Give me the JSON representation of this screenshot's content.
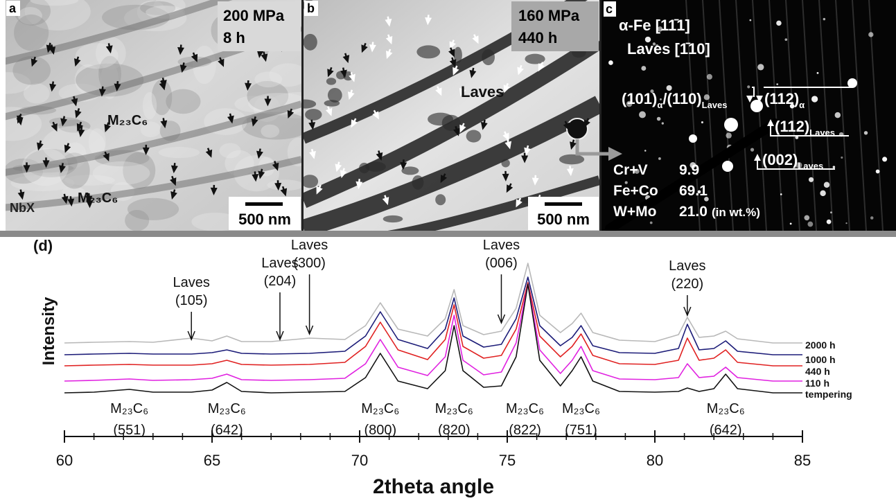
{
  "panels": [
    {
      "label": "a",
      "stress": "200 MPa",
      "time": "8 h",
      "annotations": [
        "M₂₃C₆",
        "M₂₃C₆",
        "NbX"
      ],
      "scale_bar": "500 nm"
    },
    {
      "label": "b",
      "stress": "160 MPa",
      "time": "440 h",
      "annotations": [
        "Laves"
      ],
      "scale_bar": "500 nm"
    },
    {
      "label": "c",
      "zone_axes": [
        "α-Fe [11̄1]",
        "Laves [1̄10]"
      ],
      "reflections": [
        [
          [
            "(101)",
            "α"
          ],
          [
            "/(110)",
            "Laves"
          ]
        ],
        [
          [
            "(112)",
            "α"
          ]
        ],
        [
          [
            "(112)",
            "Laves"
          ]
        ],
        [
          [
            "(002)",
            "Laves"
          ]
        ]
      ],
      "composition": [
        [
          "Cr+V",
          "9.9"
        ],
        [
          "Fe+Co",
          "69.1"
        ],
        [
          "W+Mo",
          "21.0"
        ]
      ],
      "unit": "(in wt.%)"
    }
  ],
  "chart_data": {
    "type": "line",
    "panel_label": "(d)",
    "y_label": "Intensity",
    "x_label": "2theta angle",
    "xlim": [
      60,
      85
    ],
    "xticks": [
      60,
      65,
      70,
      75,
      80,
      85
    ],
    "ylim": [
      0,
      200
    ],
    "x": [
      60,
      61,
      62.2,
      63,
      64.3,
      65,
      65.5,
      66,
      67,
      68.3,
      69.5,
      70.2,
      70.7,
      71.3,
      72.3,
      72.9,
      73.2,
      73.5,
      74.2,
      74.8,
      75.3,
      75.7,
      76.1,
      76.8,
      77.2,
      77.5,
      77.9,
      78.8,
      80,
      80.8,
      81.1,
      81.5,
      82,
      82.4,
      82.8,
      84,
      85
    ],
    "series": [
      {
        "name": "2000 h",
        "color": "#b8b8b8",
        "values": [
          80,
          81,
          82,
          81,
          87,
          83,
          90,
          82,
          82,
          87,
          85,
          105,
          138,
          100,
          90,
          115,
          157,
          105,
          92,
          97,
          130,
          195,
          120,
          95,
          108,
          123,
          95,
          84,
          82,
          92,
          117,
          88,
          90,
          97,
          86,
          80,
          80
        ]
      },
      {
        "name": "1000 h",
        "color": "#1c1c78",
        "values": [
          63,
          64,
          65,
          64,
          64,
          66,
          70,
          65,
          64,
          65,
          68,
          90,
          125,
          85,
          72,
          100,
          145,
          90,
          74,
          78,
          115,
          175,
          105,
          76,
          88,
          105,
          76,
          66,
          65,
          72,
          107,
          70,
          72,
          83,
          68,
          63,
          63
        ]
      },
      {
        "name": "440 h",
        "color": "#e02020",
        "values": [
          47,
          48,
          49,
          48,
          48,
          50,
          55,
          49,
          48,
          49,
          52,
          75,
          110,
          70,
          56,
          85,
          135,
          75,
          58,
          62,
          100,
          167,
          90,
          60,
          75,
          93,
          62,
          50,
          49,
          55,
          87,
          55,
          58,
          70,
          52,
          47,
          47
        ]
      },
      {
        "name": "110 h",
        "color": "#e020e0",
        "values": [
          25,
          26,
          28,
          26,
          27,
          29,
          35,
          27,
          26,
          27,
          29,
          50,
          85,
          45,
          33,
          60,
          120,
          55,
          34,
          38,
          80,
          165,
          70,
          36,
          55,
          75,
          40,
          28,
          27,
          30,
          50,
          30,
          32,
          45,
          30,
          25,
          25
        ]
      },
      {
        "name": "tempering",
        "color": "#111111",
        "values": [
          8,
          9,
          13,
          9,
          9,
          12,
          23,
          10,
          8,
          9,
          10,
          30,
          65,
          25,
          14,
          40,
          105,
          40,
          16,
          18,
          60,
          165,
          55,
          18,
          40,
          60,
          25,
          10,
          9,
          10,
          15,
          10,
          14,
          35,
          14,
          8,
          8
        ]
      }
    ],
    "top_peaks": [
      {
        "text": "Laves",
        "hkl": "(105)",
        "x": 64.3
      },
      {
        "text": "Laves",
        "hkl": "(204)",
        "x": 67.3
      },
      {
        "text": "Laves",
        "hkl": "(300)",
        "x": 68.3
      },
      {
        "text": "Laves",
        "hkl": "(006)",
        "x": 74.8
      },
      {
        "text": "Laves",
        "hkl": "(220)",
        "x": 81.1
      }
    ],
    "bottom_peaks": [
      {
        "text": "M₂₃C₆",
        "hkl": "(551)",
        "x": 62.2
      },
      {
        "text": "M₂₃C₆",
        "hkl": "(642)",
        "x": 65.5
      },
      {
        "text": "M₂₃C₆",
        "hkl": "(800)",
        "x": 70.7
      },
      {
        "text": "M₂₃C₆",
        "hkl": "(820)",
        "x": 73.2
      },
      {
        "text": "M₂₃C₆",
        "hkl": "(822)",
        "x": 75.6
      },
      {
        "text": "M₂₃C₆",
        "hkl": "(751)",
        "x": 77.5
      },
      {
        "text": "M₂₃C₆",
        "hkl": "(642)",
        "x": 82.4
      }
    ]
  }
}
